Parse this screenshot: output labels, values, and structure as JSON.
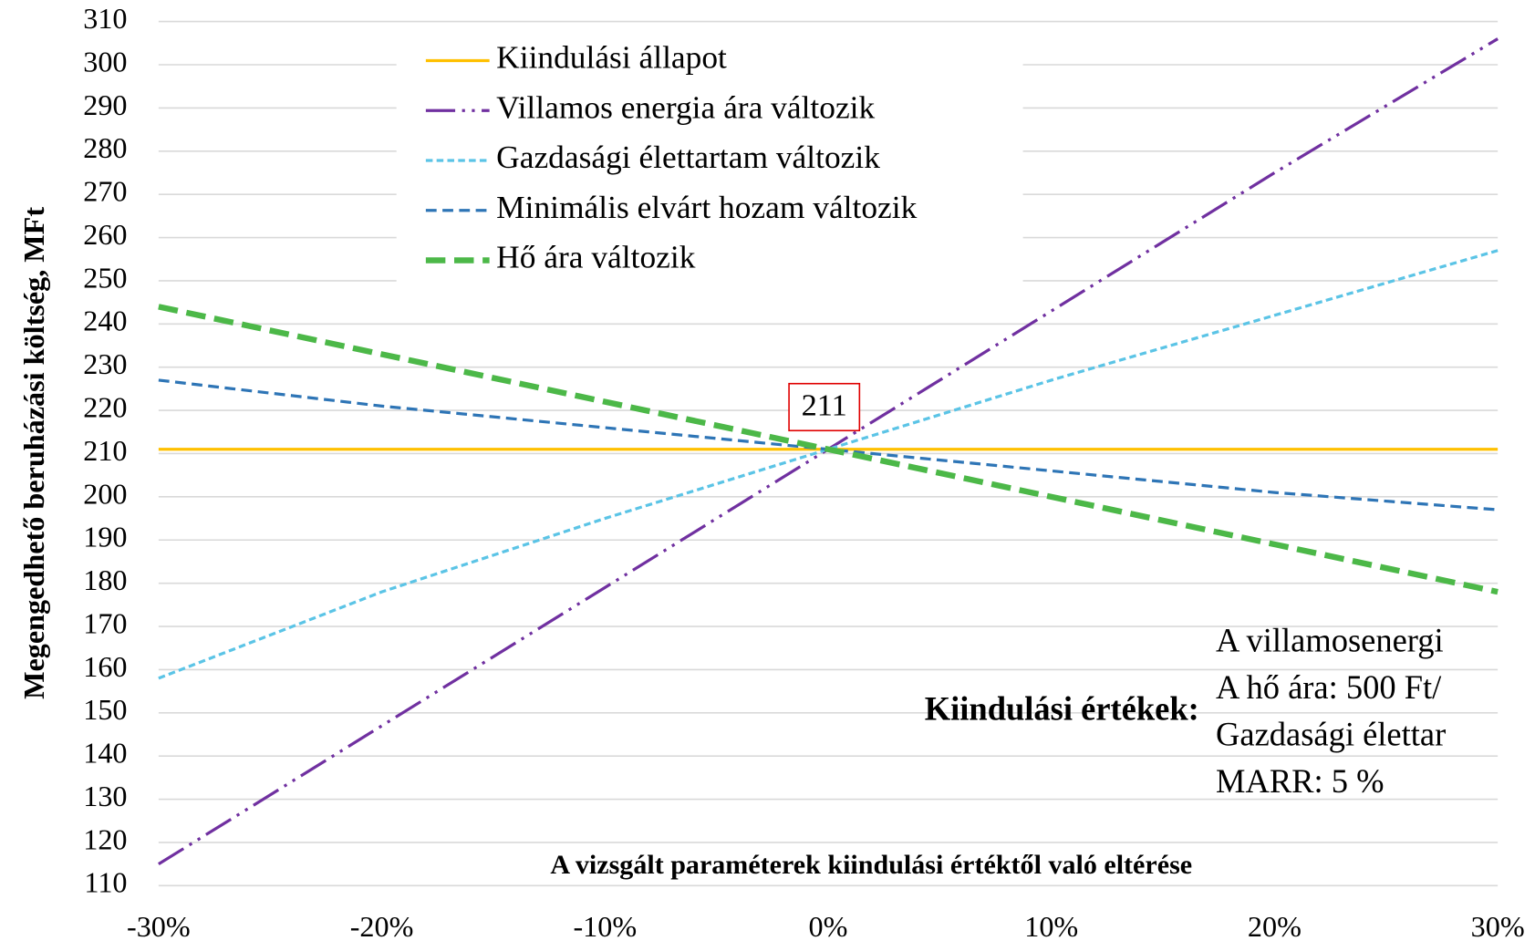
{
  "chart_data": {
    "type": "line",
    "y_label": "Megengedhető beruházási költség, MFt",
    "x_label": "A vizsgált paraméterek kiindulási értéktől való eltérése",
    "x": [
      -30,
      -20,
      -10,
      0,
      10,
      20,
      30
    ],
    "xlim": [
      -30,
      30
    ],
    "xticks": [
      {
        "value": -30,
        "label": "-30%"
      },
      {
        "value": -20,
        "label": "-20%"
      },
      {
        "value": -10,
        "label": "-10%"
      },
      {
        "value": 0,
        "label": "0%"
      },
      {
        "value": 10,
        "label": "10%"
      },
      {
        "value": 20,
        "label": "20%"
      },
      {
        "value": 30,
        "label": "30%"
      }
    ],
    "ylim": [
      110,
      310
    ],
    "yticks": [
      110,
      120,
      130,
      140,
      150,
      160,
      170,
      180,
      190,
      200,
      210,
      220,
      230,
      240,
      250,
      260,
      270,
      280,
      290,
      300,
      310
    ],
    "grid": true,
    "legend": "top-left",
    "series": [
      {
        "name": "Kiindulási állapot",
        "color": "#ffc000",
        "dash": "solid",
        "values": [
          211,
          211,
          211,
          211,
          211,
          211,
          211
        ]
      },
      {
        "name": "Villamos energia ára változik",
        "color": "#7030a0",
        "dash": "dash-dot-dot",
        "values": [
          115,
          147,
          179,
          211,
          243,
          275,
          306
        ]
      },
      {
        "name": "Gazdasági élettartam változik",
        "color": "#5bc4e6",
        "dash": "short-dash",
        "values": [
          158,
          178,
          195,
          211,
          227,
          242,
          257
        ]
      },
      {
        "name": "Minimális elvárt hozam változik",
        "color": "#2e75b6",
        "dash": "dash",
        "values": [
          227,
          221,
          216,
          211,
          206,
          201,
          197
        ]
      },
      {
        "name": "Hő ára változik",
        "color": "#4cb848",
        "dash": "thick-dash",
        "values": [
          244,
          233,
          222,
          211,
          200,
          189,
          178
        ]
      }
    ],
    "annotations": [
      {
        "text": "211",
        "x": 0,
        "y": 211
      },
      {
        "text": "Kiindulási értékek:"
      }
    ],
    "notes": [
      "A villamosenergi",
      "A hő ára: 500 Ft/",
      "Gazdasági élettar",
      "MARR: 5 %"
    ]
  }
}
